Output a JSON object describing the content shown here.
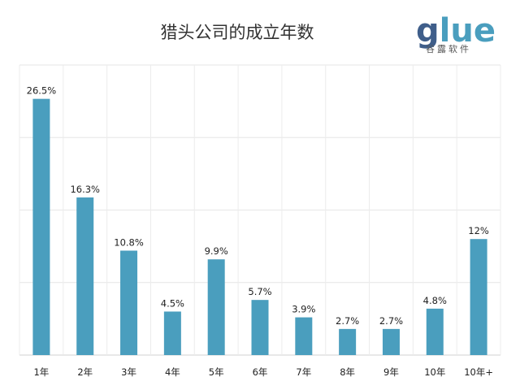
{
  "chart_data": {
    "type": "bar",
    "title": "猎头公司的成立年数",
    "categories": [
      "1年",
      "2年",
      "3年",
      "4年",
      "5年",
      "6年",
      "7年",
      "8年",
      "9年",
      "10年",
      "10年+"
    ],
    "values": [
      26.5,
      16.3,
      10.8,
      4.5,
      9.9,
      5.7,
      3.9,
      2.7,
      2.7,
      4.8,
      12
    ],
    "data_labels": [
      "26.5%",
      "16.3%",
      "10.8%",
      "4.5%",
      "9.9%",
      "5.7%",
      "3.9%",
      "2.7%",
      "2.7%",
      "4.8%",
      "12%"
    ],
    "xlabel": "",
    "ylabel": "",
    "ylim": [
      0,
      30
    ],
    "grid": true,
    "legend": "none",
    "bar_color": "#4A9EBE"
  },
  "logo": {
    "word": "glue",
    "subtitle": "谷露软件",
    "color_primary": "#3F5E8A",
    "color_secondary": "#4A9EBE"
  }
}
